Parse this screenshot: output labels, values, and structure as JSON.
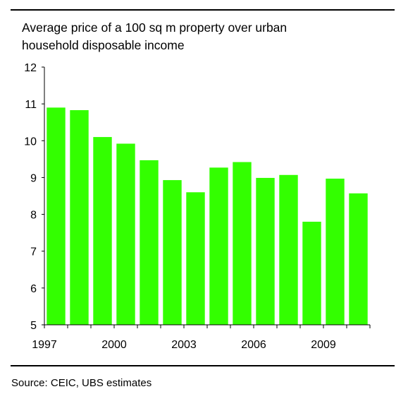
{
  "chart_data": {
    "type": "bar",
    "title_lines": [
      "Average price of a 100 sq m property over urban",
      "household disposable income"
    ],
    "categories": [
      "1997",
      "1998",
      "1999",
      "2000",
      "2001",
      "2002",
      "2003",
      "2004",
      "2005",
      "2006",
      "2007",
      "2008",
      "2009",
      "2010"
    ],
    "values": [
      10.9,
      10.83,
      10.1,
      9.92,
      9.47,
      8.93,
      8.6,
      9.27,
      9.42,
      8.99,
      9.07,
      7.8,
      8.97,
      8.57
    ],
    "x_tick_labels": [
      "1997",
      "2000",
      "2003",
      "2006",
      "2009"
    ],
    "y_ticks": [
      5,
      6,
      7,
      8,
      9,
      10,
      11,
      12
    ],
    "ylim": [
      5,
      12
    ],
    "xlabel": "",
    "ylabel": "",
    "bar_color": "#33ff00",
    "grid": false,
    "legend": "none"
  },
  "source": "Source: CEIC, UBS estimates"
}
